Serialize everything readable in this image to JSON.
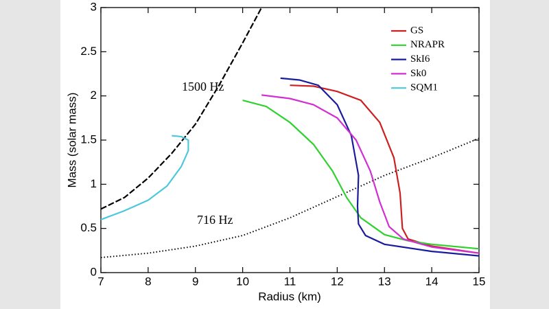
{
  "chart_data": {
    "type": "line",
    "x_label": "Radius (km)",
    "y_label": "Mass (solar mass)",
    "xlim": [
      7,
      15
    ],
    "ylim": [
      0,
      3
    ],
    "xticks": [
      7,
      8,
      9,
      10,
      11,
      12,
      13,
      14,
      15
    ],
    "yticks": [
      0,
      0.5,
      1,
      1.5,
      2,
      2.5,
      3
    ],
    "legend": "upper right",
    "series": [
      {
        "name": "GS",
        "color": "#cc1f1f",
        "x": [
          11.0,
          11.5,
          12.0,
          12.5,
          12.9,
          13.2,
          13.33,
          13.38,
          13.5,
          14,
          15
        ],
        "values": [
          2.12,
          2.11,
          2.05,
          1.95,
          1.7,
          1.3,
          0.9,
          0.5,
          0.38,
          0.3,
          0.22
        ]
      },
      {
        "name": "NRAPR",
        "color": "#2ed12e",
        "x": [
          10,
          10.5,
          11,
          11.5,
          11.9,
          12.2,
          12.5,
          13,
          13.5,
          14,
          15
        ],
        "values": [
          1.95,
          1.88,
          1.7,
          1.45,
          1.15,
          0.85,
          0.62,
          0.43,
          0.36,
          0.32,
          0.27
        ]
      },
      {
        "name": "SkI6",
        "color": "#1a1a9c",
        "x": [
          10.8,
          11.2,
          11.6,
          12.0,
          12.3,
          12.45,
          12.43,
          12.45,
          12.6,
          13,
          14,
          15
        ],
        "values": [
          2.2,
          2.18,
          2.12,
          1.9,
          1.55,
          1.1,
          0.75,
          0.55,
          0.42,
          0.32,
          0.24,
          0.19
        ]
      },
      {
        "name": "Sk0",
        "color": "#d12fd1",
        "x": [
          10.4,
          11,
          11.5,
          12,
          12.4,
          12.7,
          12.9,
          13.1,
          13.4,
          14,
          15
        ],
        "values": [
          2.01,
          1.97,
          1.9,
          1.75,
          1.5,
          1.15,
          0.8,
          0.52,
          0.38,
          0.29,
          0.22
        ]
      },
      {
        "name": "SQM1",
        "color": "#4cc8dc",
        "x": [
          8.5,
          8.7,
          8.85,
          8.85,
          8.7,
          8.4,
          8.0,
          7.5,
          7
        ],
        "values": [
          1.55,
          1.54,
          1.5,
          1.38,
          1.2,
          0.98,
          0.82,
          0.7,
          0.6
        ]
      }
    ],
    "reference_curves": [
      {
        "label": "1500 Hz",
        "color": "#000000",
        "dash": "dashed",
        "x": [
          7,
          7.5,
          8,
          8.5,
          9,
          9.5,
          10,
          10.4
        ],
        "values": [
          0.72,
          0.85,
          1.07,
          1.35,
          1.68,
          2.12,
          2.6,
          3.0
        ]
      },
      {
        "label": "716 Hz",
        "color": "#000000",
        "dash": "dotted",
        "x": [
          7,
          8,
          9,
          10,
          11,
          12,
          13,
          14,
          15
        ],
        "values": [
          0.17,
          0.22,
          0.3,
          0.42,
          0.62,
          0.86,
          1.1,
          1.3,
          1.52
        ]
      }
    ]
  }
}
